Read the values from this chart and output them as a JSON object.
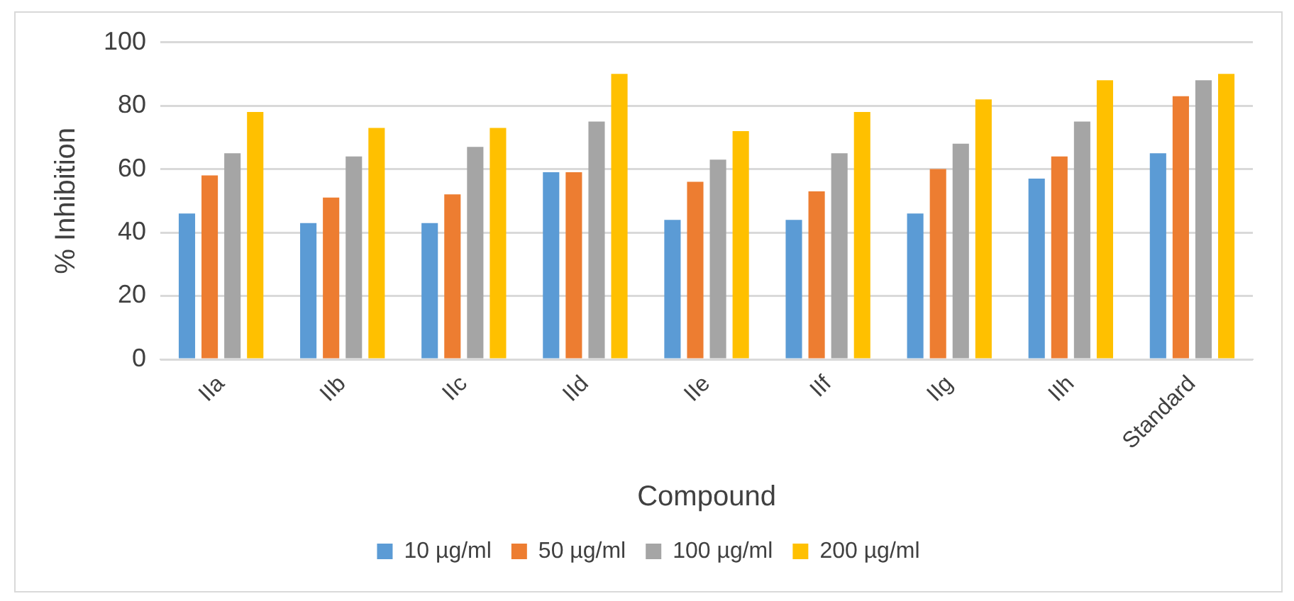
{
  "chart_data": {
    "type": "bar",
    "xlabel": "Compound",
    "ylabel": "% Inhibition",
    "categories": [
      "IIa",
      "IIb",
      "IIc",
      "IId",
      "IIe",
      "IIf",
      "IIg",
      "IIh",
      "Standard"
    ],
    "series": [
      {
        "name": "10 µg/ml",
        "color": "#5b9bd5",
        "values": [
          46,
          43,
          43,
          59,
          44,
          44,
          46,
          57,
          65
        ]
      },
      {
        "name": "50 µg/ml",
        "color": "#ed7d31",
        "values": [
          58,
          51,
          52,
          59,
          56,
          53,
          60,
          64,
          83
        ]
      },
      {
        "name": "100 µg/ml",
        "color": "#a5a5a5",
        "values": [
          65,
          64,
          67,
          75,
          63,
          65,
          68,
          75,
          88
        ]
      },
      {
        "name": "200 µg/ml",
        "color": "#ffc000",
        "values": [
          78,
          73,
          73,
          90,
          72,
          78,
          82,
          88,
          90
        ]
      }
    ],
    "ylim": [
      0,
      100
    ],
    "yticks": [
      0,
      20,
      40,
      60,
      80,
      100
    ],
    "grid": "y",
    "legend": "bottom"
  }
}
